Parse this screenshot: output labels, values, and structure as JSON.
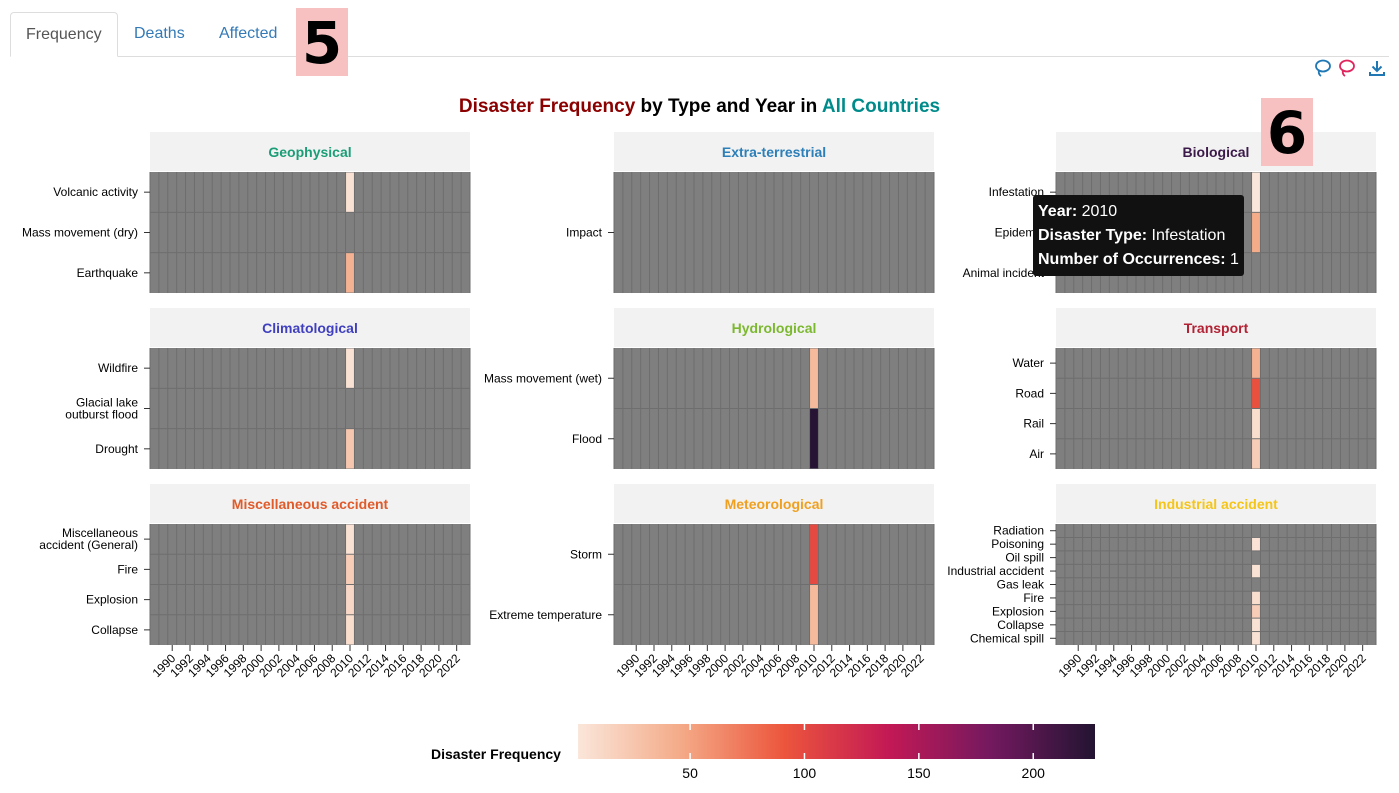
{
  "tabs": [
    {
      "label": "Frequency",
      "active": true
    },
    {
      "label": "Deaths",
      "active": false
    },
    {
      "label": "Affected",
      "active": false
    }
  ],
  "badges": {
    "b5": "5",
    "b6": "6"
  },
  "toolbar_icons": [
    "lasso-icon",
    "lasso-select-icon",
    "download-icon"
  ],
  "title": {
    "part1": "Disaster Frequency",
    "part2": " by Type and Year in ",
    "part3": "All Countries",
    "colors": {
      "part1": "#8b0000",
      "part3": "#008b8b"
    }
  },
  "tooltip": {
    "year_label": "Year:",
    "year": "2010",
    "type_label": "Disaster Type:",
    "type": "Infestation",
    "count_label": "Number of Occurrences:",
    "count": "1"
  },
  "colorbar": {
    "label": "Disaster Frequency",
    "ticks": [
      "50",
      "100",
      "150",
      "200"
    ],
    "tick_values": [
      50,
      100,
      150,
      200
    ],
    "range": [
      1,
      227
    ]
  },
  "chart_data": {
    "type": "heatmap",
    "x_ticks": [
      "1990",
      "1992",
      "1994",
      "1996",
      "1998",
      "2000",
      "2002",
      "2004",
      "2006",
      "2008",
      "2010",
      "2012",
      "2014",
      "2016",
      "2018",
      "2020",
      "2022"
    ],
    "x_range": [
      1988,
      2023
    ],
    "highlight_year": 2010,
    "panels": [
      {
        "title": "Geophysical",
        "title_color": "#1b9e77",
        "rows": [
          "Volcanic activity",
          "Mass movement (dry)",
          "Earthquake"
        ],
        "values_2010": [
          5,
          null,
          40
        ]
      },
      {
        "title": "Extra-terrestrial",
        "title_color": "#2c7fb8",
        "rows": [
          "Impact"
        ],
        "values_2010": [
          null
        ]
      },
      {
        "title": "Biological",
        "title_color": "#3b1a4a",
        "rows": [
          "Infestation",
          "Epidemic",
          "Animal incident"
        ],
        "values_2010": [
          1,
          45,
          null
        ]
      },
      {
        "title": "Climatological",
        "title_color": "#3f3fbf",
        "rows": [
          "Wildfire",
          "Glacial lake\noutburst flood",
          "Drought"
        ],
        "values_2010": [
          5,
          null,
          25
        ]
      },
      {
        "title": "Hydrological",
        "title_color": "#7cb82f",
        "rows": [
          "Mass movement (wet)",
          "Flood"
        ],
        "values_2010": [
          35,
          225
        ]
      },
      {
        "title": "Transport",
        "title_color": "#b22234",
        "rows": [
          "Water",
          "Road",
          "Rail",
          "Air"
        ],
        "values_2010": [
          40,
          95,
          8,
          20
        ]
      },
      {
        "title": "Miscellaneous accident",
        "title_color": "#e05a2a",
        "rows": [
          "Miscellaneous\naccident (General)",
          "Fire",
          "Explosion",
          "Collapse"
        ],
        "values_2010": [
          5,
          20,
          12,
          8
        ]
      },
      {
        "title": "Meteorological",
        "title_color": "#f0a020",
        "rows": [
          "Storm",
          "Extreme temperature"
        ],
        "values_2010": [
          100,
          35
        ]
      },
      {
        "title": "Industrial accident",
        "title_color": "#f5c518",
        "rows": [
          "Radiation",
          "Poisoning",
          "Oil spill",
          "Industrial accident",
          "Gas leak",
          "Fire",
          "Explosion",
          "Collapse",
          "Chemical spill"
        ],
        "values_2010": [
          null,
          3,
          null,
          5,
          null,
          8,
          20,
          5,
          5
        ]
      }
    ]
  }
}
